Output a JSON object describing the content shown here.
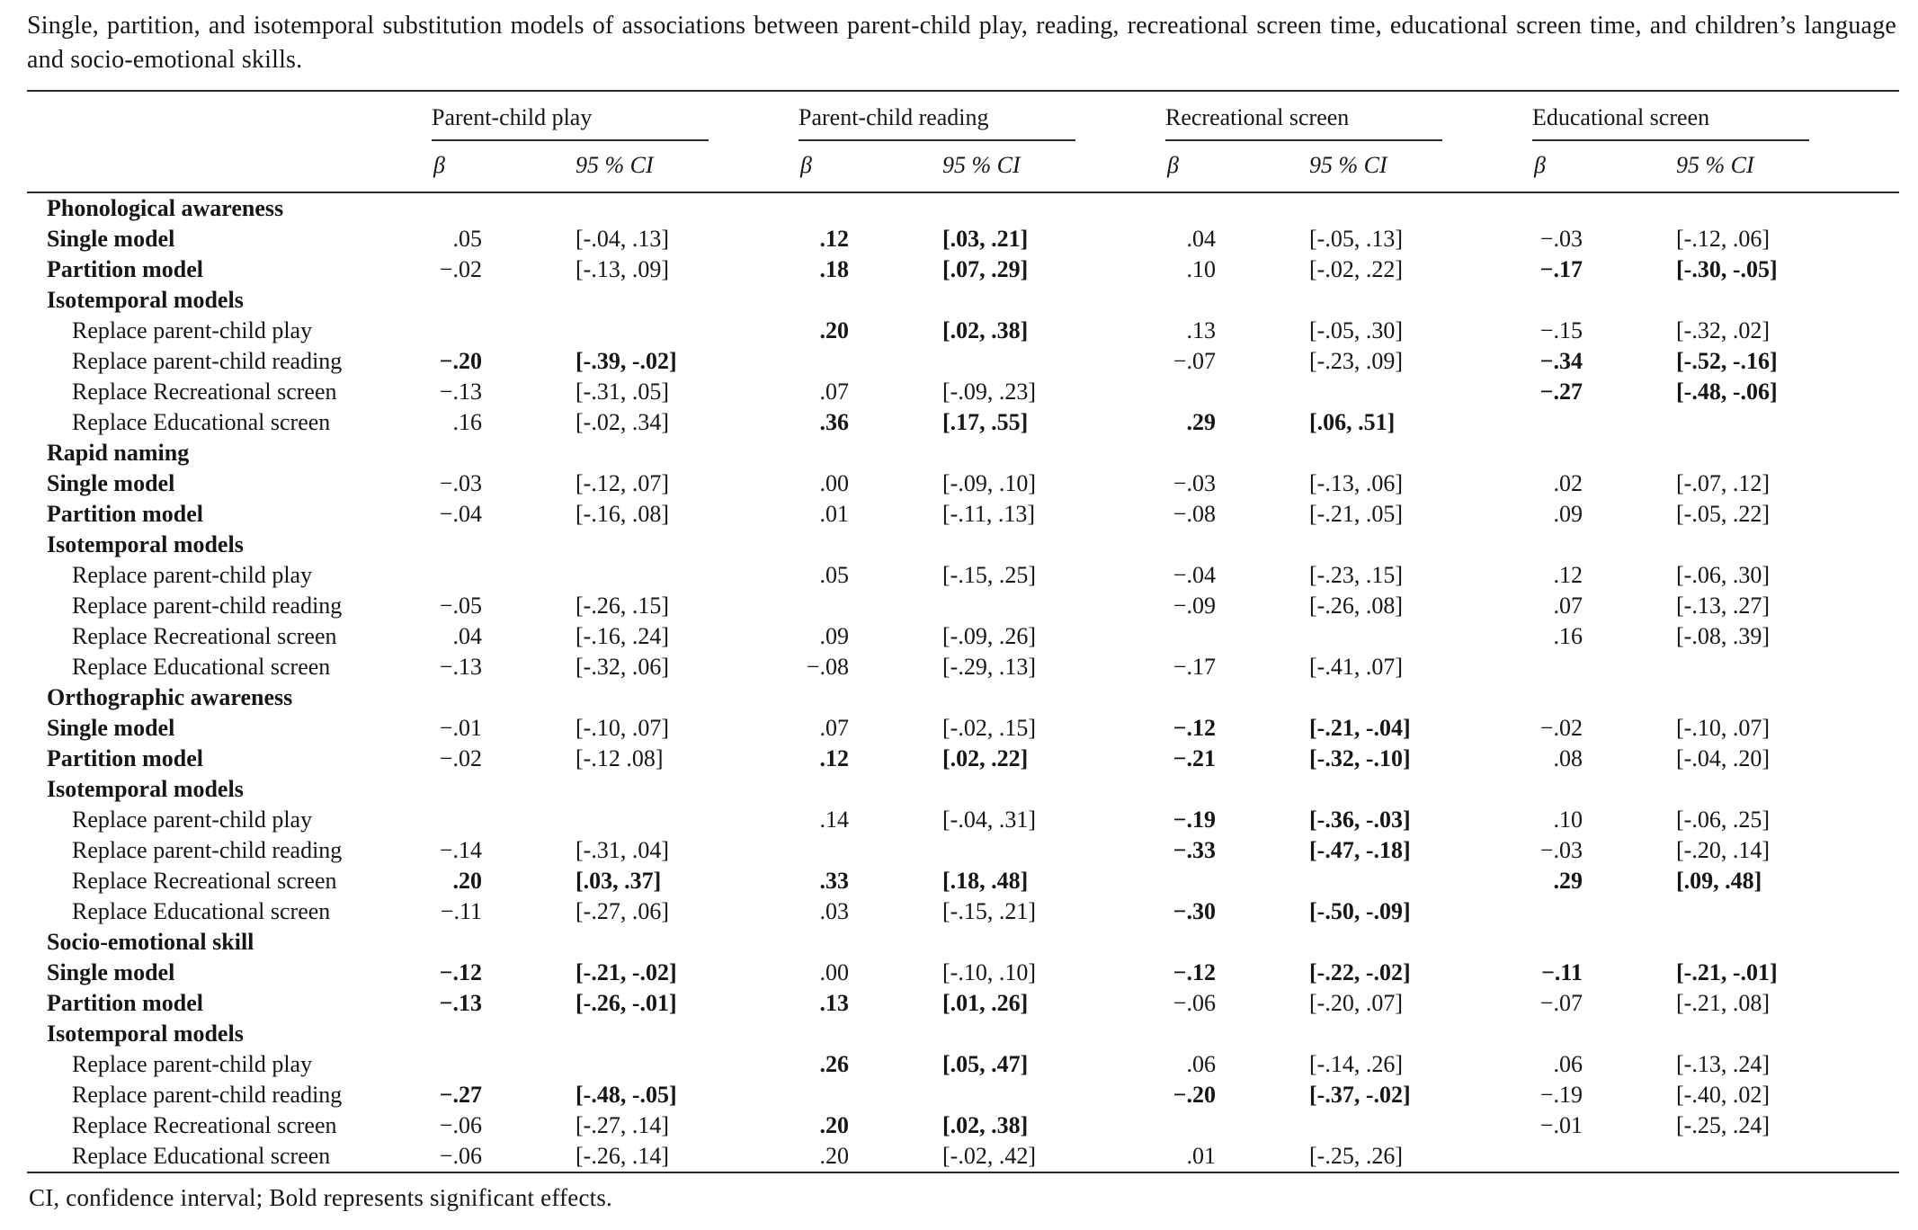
{
  "title": "Single, partition, and isotemporal substitution models of associations between parent-child play, reading, recreational screen time, educational screen time, and children’s language and socio-emotional skills.",
  "footnote": "CI, confidence interval; Bold represents significant effects.",
  "column_groups": [
    "Parent-child play",
    "Parent-child reading",
    "Recreational screen",
    "Educational screen"
  ],
  "subheaders": {
    "beta": "β",
    "ci": "95 % CI"
  },
  "rows": [
    {
      "type": "section",
      "label": "Phonological awareness"
    },
    {
      "type": "model",
      "label": "Single model",
      "cells": [
        {
          "b": ".05",
          "ci": "[-.04, .13]"
        },
        {
          "b": ".12",
          "ci": "[.03, .21]",
          "s": true
        },
        {
          "b": ".04",
          "ci": "[-.05, .13]"
        },
        {
          "b": "−.03",
          "ci": "[-.12, .06]"
        }
      ]
    },
    {
      "type": "model",
      "label": "Partition model",
      "cells": [
        {
          "b": "−.02",
          "ci": "[-.13, .09]"
        },
        {
          "b": ".18",
          "ci": "[.07, .29]",
          "s": true
        },
        {
          "b": ".10",
          "ci": "[-.02, .22]"
        },
        {
          "b": "−.17",
          "ci": "[-.30, -.05]",
          "s": true
        }
      ]
    },
    {
      "type": "subsection",
      "label": "Isotemporal models"
    },
    {
      "type": "replace",
      "label": "Replace parent-child play",
      "cells": [
        null,
        {
          "b": ".20",
          "ci": "[.02, .38]",
          "s": true
        },
        {
          "b": ".13",
          "ci": "[-.05, .30]"
        },
        {
          "b": "−.15",
          "ci": "[-.32, .02]"
        }
      ]
    },
    {
      "type": "replace",
      "label": "Replace parent-child reading",
      "cells": [
        {
          "b": "−.20",
          "ci": "[-.39, -.02]",
          "s": true
        },
        null,
        {
          "b": "−.07",
          "ci": "[-.23, .09]"
        },
        {
          "b": "−.34",
          "ci": "[-.52, -.16]",
          "s": true
        }
      ]
    },
    {
      "type": "replace",
      "label": "Replace Recreational screen",
      "cells": [
        {
          "b": "−.13",
          "ci": "[-.31, .05]"
        },
        {
          "b": ".07",
          "ci": "[-.09, .23]"
        },
        null,
        {
          "b": "−.27",
          "ci": "[-.48, -.06]",
          "s": true
        }
      ]
    },
    {
      "type": "replace",
      "label": "Replace Educational screen",
      "cells": [
        {
          "b": ".16",
          "ci": "[-.02, .34]"
        },
        {
          "b": ".36",
          "ci": "[.17, .55]",
          "s": true
        },
        {
          "b": ".29",
          "ci": "[.06, .51]",
          "s": true
        },
        null
      ]
    },
    {
      "type": "section",
      "label": "Rapid naming"
    },
    {
      "type": "model",
      "label": "Single model",
      "cells": [
        {
          "b": "−.03",
          "ci": "[-.12, .07]"
        },
        {
          "b": ".00",
          "ci": "[-.09, .10]"
        },
        {
          "b": "−.03",
          "ci": "[-.13, .06]"
        },
        {
          "b": ".02",
          "ci": "[-.07, .12]"
        }
      ]
    },
    {
      "type": "model",
      "label": "Partition model",
      "cells": [
        {
          "b": "−.04",
          "ci": "[-.16, .08]"
        },
        {
          "b": ".01",
          "ci": "[-.11, .13]"
        },
        {
          "b": "−.08",
          "ci": "[-.21, .05]"
        },
        {
          "b": ".09",
          "ci": "[-.05, .22]"
        }
      ]
    },
    {
      "type": "subsection",
      "label": "Isotemporal models"
    },
    {
      "type": "replace",
      "label": "Replace parent-child play",
      "cells": [
        null,
        {
          "b": ".05",
          "ci": "[-.15, .25]"
        },
        {
          "b": "−.04",
          "ci": "[-.23, .15]"
        },
        {
          "b": ".12",
          "ci": "[-.06, .30]"
        }
      ]
    },
    {
      "type": "replace",
      "label": "Replace parent-child reading",
      "cells": [
        {
          "b": "−.05",
          "ci": "[-.26, .15]"
        },
        null,
        {
          "b": "−.09",
          "ci": "[-.26, .08]"
        },
        {
          "b": ".07",
          "ci": "[-.13, .27]"
        }
      ]
    },
    {
      "type": "replace",
      "label": "Replace Recreational screen",
      "cells": [
        {
          "b": ".04",
          "ci": "[-.16, .24]"
        },
        {
          "b": ".09",
          "ci": "[-.09, .26]"
        },
        null,
        {
          "b": ".16",
          "ci": "[-.08, .39]"
        }
      ]
    },
    {
      "type": "replace",
      "label": "Replace Educational screen",
      "cells": [
        {
          "b": "−.13",
          "ci": "[-.32, .06]"
        },
        {
          "b": "−.08",
          "ci": "[-.29, .13]"
        },
        {
          "b": "−.17",
          "ci": "[-.41, .07]"
        },
        null
      ]
    },
    {
      "type": "section",
      "label": "Orthographic awareness"
    },
    {
      "type": "model",
      "label": "Single model",
      "cells": [
        {
          "b": "−.01",
          "ci": "[-.10, .07]"
        },
        {
          "b": ".07",
          "ci": "[-.02, .15]"
        },
        {
          "b": "−.12",
          "ci": "[-.21, -.04]",
          "s": true
        },
        {
          "b": "−.02",
          "ci": "[-.10, .07]"
        }
      ]
    },
    {
      "type": "model",
      "label": "Partition model",
      "cells": [
        {
          "b": "−.02",
          "ci": "[-.12 .08]"
        },
        {
          "b": ".12",
          "ci": "[.02, .22]",
          "s": true
        },
        {
          "b": "−.21",
          "ci": "[-.32, -.10]",
          "s": true
        },
        {
          "b": ".08",
          "ci": "[-.04, .20]"
        }
      ]
    },
    {
      "type": "subsection",
      "label": "Isotemporal models"
    },
    {
      "type": "replace",
      "label": "Replace parent-child play",
      "cells": [
        null,
        {
          "b": ".14",
          "ci": "[-.04, .31]"
        },
        {
          "b": "−.19",
          "ci": "[-.36, -.03]",
          "s": true
        },
        {
          "b": ".10",
          "ci": "[-.06, .25]"
        }
      ]
    },
    {
      "type": "replace",
      "label": "Replace parent-child reading",
      "cells": [
        {
          "b": "−.14",
          "ci": "[-.31, .04]"
        },
        null,
        {
          "b": "−.33",
          "ci": "[-.47, -.18]",
          "s": true
        },
        {
          "b": "−.03",
          "ci": "[-.20, .14]"
        }
      ]
    },
    {
      "type": "replace",
      "label": "Replace Recreational screen",
      "cells": [
        {
          "b": ".20",
          "ci": "[.03, .37]",
          "s": true
        },
        {
          "b": ".33",
          "ci": "[.18, .48]",
          "s": true
        },
        null,
        {
          "b": ".29",
          "ci": "[.09, .48]",
          "s": true
        }
      ]
    },
    {
      "type": "replace",
      "label": "Replace Educational screen",
      "cells": [
        {
          "b": "−.11",
          "ci": "[-.27, .06]"
        },
        {
          "b": ".03",
          "ci": "[-.15, .21]"
        },
        {
          "b": "−.30",
          "ci": "[-.50, -.09]",
          "s": true
        },
        null
      ]
    },
    {
      "type": "section",
      "label": "Socio-emotional skill"
    },
    {
      "type": "model",
      "label": "Single model",
      "cells": [
        {
          "b": "−.12",
          "ci": "[-.21, -.02]",
          "s": true
        },
        {
          "b": ".00",
          "ci": "[-.10, .10]"
        },
        {
          "b": "−.12",
          "ci": "[-.22, -.02]",
          "s": true
        },
        {
          "b": "−.11",
          "ci": "[-.21, -.01]",
          "s": true
        }
      ]
    },
    {
      "type": "model",
      "label": "Partition model",
      "cells": [
        {
          "b": "−.13",
          "ci": "[-.26, -.01]",
          "s": true
        },
        {
          "b": ".13",
          "ci": "[.01, .26]",
          "s": true
        },
        {
          "b": "−.06",
          "ci": "[-.20, .07]"
        },
        {
          "b": "−.07",
          "ci": "[-.21, .08]"
        }
      ]
    },
    {
      "type": "subsection",
      "label": "Isotemporal models"
    },
    {
      "type": "replace",
      "label": "Replace parent-child play",
      "cells": [
        null,
        {
          "b": ".26",
          "ci": "[.05, .47]",
          "s": true
        },
        {
          "b": ".06",
          "ci": "[-.14, .26]"
        },
        {
          "b": ".06",
          "ci": "[-.13, .24]"
        }
      ]
    },
    {
      "type": "replace",
      "label": "Replace parent-child reading",
      "cells": [
        {
          "b": "−.27",
          "ci": "[-.48, -.05]",
          "s": true
        },
        null,
        {
          "b": "−.20",
          "ci": "[-.37, -.02]",
          "s": true
        },
        {
          "b": "−.19",
          "ci": "[-.40, .02]"
        }
      ]
    },
    {
      "type": "replace",
      "label": "Replace Recreational screen",
      "cells": [
        {
          "b": "−.06",
          "ci": "[-.27, .14]"
        },
        {
          "b": ".20",
          "ci": "[.02, .38]",
          "s": true
        },
        null,
        {
          "b": "−.01",
          "ci": "[-.25, .24]"
        }
      ]
    },
    {
      "type": "replace",
      "label": "Replace Educational screen",
      "cells": [
        {
          "b": "−.06",
          "ci": "[-.26, .14]"
        },
        {
          "b": ".20",
          "ci": "[-.02, .42]"
        },
        {
          "b": ".01",
          "ci": "[-.25, .26]"
        },
        null
      ]
    }
  ]
}
